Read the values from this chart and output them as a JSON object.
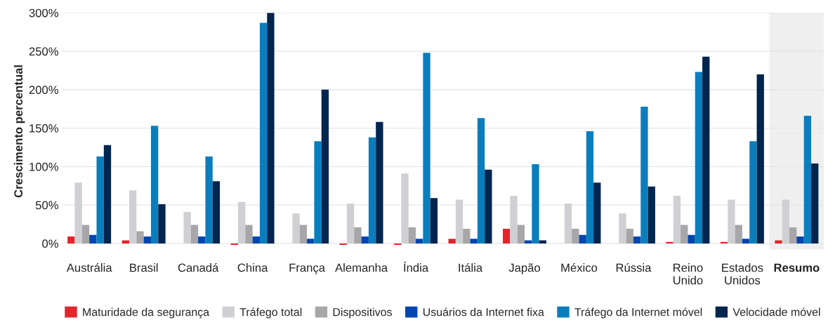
{
  "chart_data": {
    "type": "bar",
    "ylabel": "Crescimento percentual",
    "categories": [
      "Austrália",
      "Brasil",
      "Canadá",
      "China",
      "França",
      "Alemanha",
      "Índia",
      "Itália",
      "Japão",
      "México",
      "Rússia",
      "Reino\nUnido",
      "Estados\nUnidos",
      "Resumo"
    ],
    "series": [
      {
        "name": "Maturidade da segurança",
        "color": "#e3242b",
        "values": [
          9,
          4,
          null,
          -2,
          null,
          -2,
          -2,
          6,
          19,
          null,
          null,
          2,
          2,
          4
        ]
      },
      {
        "name": "Tráfego total",
        "color": "#d0d0d4",
        "values": [
          79,
          69,
          41,
          54,
          39,
          52,
          91,
          57,
          62,
          52,
          39,
          62,
          57,
          57
        ]
      },
      {
        "name": "Dispositivos",
        "color": "#a7a7aa",
        "values": [
          24,
          16,
          24,
          24,
          24,
          21,
          21,
          19,
          24,
          19,
          19,
          24,
          24,
          21
        ]
      },
      {
        "name": "Usuários da Internet fixa",
        "color": "#0046b0",
        "values": [
          11,
          9,
          9,
          9,
          6,
          9,
          6,
          6,
          4,
          11,
          9,
          11,
          6,
          9
        ]
      },
      {
        "name": "Tráfego da Internet móvel",
        "color": "#0a7ebc",
        "values": [
          113,
          153,
          113,
          287,
          133,
          138,
          248,
          163,
          103,
          146,
          178,
          223,
          133,
          166
        ]
      },
      {
        "name": "Velocidade móvel",
        "color": "#00254f",
        "values": [
          128,
          51,
          81,
          300,
          200,
          158,
          59,
          96,
          4,
          79,
          74,
          243,
          220,
          104
        ]
      }
    ],
    "ylim": [
      -8,
      300
    ],
    "yticks": [
      {
        "value": 0,
        "label": "0%"
      },
      {
        "value": 50,
        "label": "50%"
      },
      {
        "value": 100,
        "label": "100%"
      },
      {
        "value": 150,
        "label": "150%"
      },
      {
        "value": 200,
        "label": "200%"
      },
      {
        "value": 250,
        "label": "250%"
      },
      {
        "value": 300,
        "label": "300%"
      }
    ],
    "bands": [
      {
        "axis": "x",
        "from": "Resumo",
        "to": "Resumo",
        "color": "#efefef"
      }
    ],
    "grid": "y",
    "legend": "bottom"
  }
}
